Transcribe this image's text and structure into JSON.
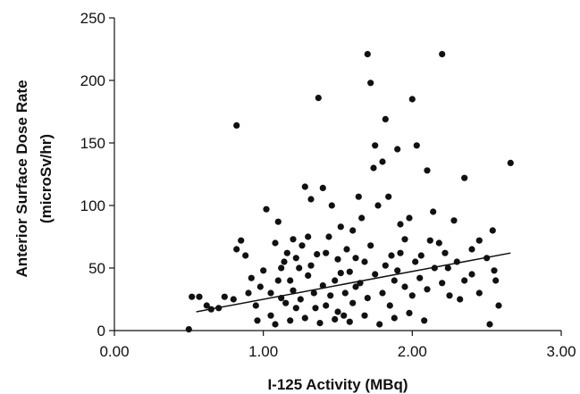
{
  "chart_data": {
    "type": "scatter",
    "xlabel": "I-125 Activity (MBq)",
    "ylabel_line1": "Anterior Surface Dose Rate",
    "ylabel_line2": "(microSv/hr)",
    "xlim": [
      0,
      3
    ],
    "ylim": [
      0,
      250
    ],
    "x_ticks": [
      0,
      1,
      2,
      3
    ],
    "x_tick_labels": [
      "0.00",
      "1.00",
      "2.00",
      "3.00"
    ],
    "y_ticks": [
      0,
      50,
      100,
      150,
      200,
      250
    ],
    "y_tick_labels": [
      "0",
      "50",
      "100",
      "150",
      "200",
      "250"
    ],
    "grid": false,
    "trendline": {
      "x": [
        0.55,
        2.66
      ],
      "y": [
        15,
        62
      ]
    },
    "series": [
      {
        "points": [
          [
            0.5,
            1
          ],
          [
            0.52,
            27
          ],
          [
            0.57,
            27
          ],
          [
            0.62,
            20
          ],
          [
            0.65,
            17
          ],
          [
            0.7,
            18
          ],
          [
            0.74,
            27
          ],
          [
            0.8,
            25
          ],
          [
            0.82,
            65
          ],
          [
            0.82,
            164
          ],
          [
            0.85,
            72
          ],
          [
            0.88,
            60
          ],
          [
            0.9,
            30
          ],
          [
            0.92,
            42
          ],
          [
            0.95,
            20
          ],
          [
            0.96,
            8
          ],
          [
            0.98,
            35
          ],
          [
            1.0,
            48
          ],
          [
            1.02,
            97
          ],
          [
            1.05,
            30
          ],
          [
            1.08,
            70
          ],
          [
            1.1,
            87
          ],
          [
            1.12,
            26
          ],
          [
            1.14,
            55
          ],
          [
            1.16,
            62
          ],
          [
            1.18,
            40
          ],
          [
            1.2,
            73
          ],
          [
            1.22,
            18
          ],
          [
            1.24,
            50
          ],
          [
            1.26,
            68
          ],
          [
            1.28,
            115
          ],
          [
            1.3,
            75
          ],
          [
            1.32,
            105
          ],
          [
            1.34,
            30
          ],
          [
            1.36,
            61
          ],
          [
            1.37,
            186
          ],
          [
            1.4,
            114
          ],
          [
            1.42,
            20
          ],
          [
            1.44,
            75
          ],
          [
            1.46,
            100
          ],
          [
            1.48,
            40
          ],
          [
            1.5,
            57
          ],
          [
            1.52,
            83
          ],
          [
            1.54,
            12
          ],
          [
            1.56,
            65
          ],
          [
            1.58,
            47
          ],
          [
            1.6,
            80
          ],
          [
            1.62,
            35
          ],
          [
            1.64,
            107
          ],
          [
            1.66,
            90
          ],
          [
            1.68,
            55
          ],
          [
            1.7,
            221
          ],
          [
            1.72,
            198
          ],
          [
            1.74,
            130
          ],
          [
            1.75,
            148
          ],
          [
            1.77,
            100
          ],
          [
            1.8,
            135
          ],
          [
            1.82,
            169
          ],
          [
            1.84,
            107
          ],
          [
            1.86,
            60
          ],
          [
            1.88,
            40
          ],
          [
            1.9,
            145
          ],
          [
            1.92,
            85
          ],
          [
            1.95,
            73
          ],
          [
            1.98,
            90
          ],
          [
            2.0,
            185
          ],
          [
            2.03,
            148
          ],
          [
            2.06,
            60
          ],
          [
            2.1,
            128
          ],
          [
            2.14,
            95
          ],
          [
            2.18,
            70
          ],
          [
            2.2,
            221
          ],
          [
            2.24,
            50
          ],
          [
            2.28,
            88
          ],
          [
            2.32,
            25
          ],
          [
            2.35,
            122
          ],
          [
            2.4,
            45
          ],
          [
            2.45,
            72
          ],
          [
            2.5,
            58
          ],
          [
            2.52,
            5
          ],
          [
            2.54,
            80
          ],
          [
            2.56,
            40
          ],
          [
            2.58,
            20
          ],
          [
            2.66,
            134
          ],
          [
            1.05,
            12
          ],
          [
            1.1,
            40
          ],
          [
            1.15,
            22
          ],
          [
            1.2,
            32
          ],
          [
            1.25,
            25
          ],
          [
            1.3,
            44
          ],
          [
            1.35,
            18
          ],
          [
            1.4,
            36
          ],
          [
            1.45,
            28
          ],
          [
            1.5,
            15
          ],
          [
            1.55,
            30
          ],
          [
            1.6,
            22
          ],
          [
            1.65,
            38
          ],
          [
            1.7,
            26
          ],
          [
            1.75,
            45
          ],
          [
            1.8,
            30
          ],
          [
            1.85,
            20
          ],
          [
            1.9,
            48
          ],
          [
            1.95,
            35
          ],
          [
            2.0,
            28
          ],
          [
            2.05,
            42
          ],
          [
            2.1,
            33
          ],
          [
            2.15,
            50
          ],
          [
            2.2,
            38
          ],
          [
            2.25,
            28
          ],
          [
            2.3,
            55
          ],
          [
            2.35,
            40
          ],
          [
            2.4,
            65
          ],
          [
            2.45,
            30
          ],
          [
            2.55,
            48
          ],
          [
            1.12,
            50
          ],
          [
            1.22,
            58
          ],
          [
            1.32,
            52
          ],
          [
            1.42,
            62
          ],
          [
            1.52,
            46
          ],
          [
            1.62,
            58
          ],
          [
            1.72,
            68
          ],
          [
            1.82,
            52
          ],
          [
            1.92,
            62
          ],
          [
            2.02,
            55
          ],
          [
            2.12,
            72
          ],
          [
            2.22,
            62
          ],
          [
            1.08,
            5
          ],
          [
            1.18,
            8
          ],
          [
            1.28,
            10
          ],
          [
            1.38,
            6
          ],
          [
            1.48,
            9
          ],
          [
            1.58,
            7
          ],
          [
            1.68,
            12
          ],
          [
            1.78,
            5
          ],
          [
            1.88,
            10
          ],
          [
            1.98,
            14
          ],
          [
            2.08,
            8
          ]
        ]
      }
    ]
  }
}
